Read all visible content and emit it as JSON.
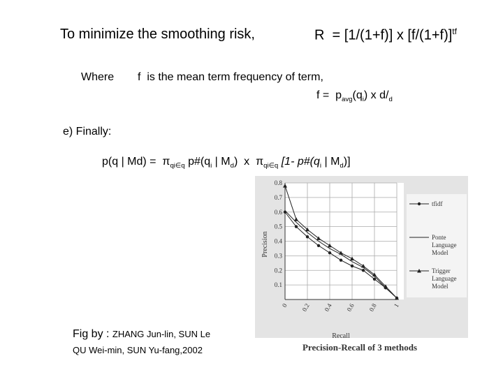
{
  "heading": {
    "text": "To minimize the smoothing risk,",
    "formula": [
      "R  = [1/(1+f)] x [f/(1+f)]",
      "tf"
    ]
  },
  "where": {
    "label": "Where",
    "definition": "f  is the mean term frequency of term,",
    "formula": [
      "f =  p",
      "avg",
      "(q",
      "i",
      ") x d/",
      "d"
    ]
  },
  "finally": {
    "label": "e) Finally:",
    "formula": [
      "p(q | Md) =  π",
      "qi∈q",
      " p#(q",
      "i",
      " | M",
      "d",
      ")  x  π",
      "qi∈q",
      " [1- p#(q",
      "i",
      " | M",
      "d",
      ")]"
    ]
  },
  "credit": {
    "prefix": "Fig by : ",
    "line1": "ZHANG Jun-lin, SUN Le",
    "line2": "QU Wei-min, SUN Yu-fang,2002"
  },
  "chart_data": {
    "type": "line",
    "caption": "Precision-Recall of 3 methods",
    "xlabel": "Recall",
    "ylabel": "Precision",
    "x": [
      0,
      0.1,
      0.2,
      0.3,
      0.4,
      0.5,
      0.6,
      0.7,
      0.8,
      0.9,
      1
    ],
    "series": [
      {
        "name": "tfidf",
        "color": "#222222",
        "marker": "circle",
        "values": [
          0.6,
          0.5,
          0.43,
          0.37,
          0.32,
          0.27,
          0.23,
          0.2,
          0.14,
          0.08,
          0.01
        ]
      },
      {
        "name": "Ponte Language Model",
        "color": "#222222",
        "marker": "none",
        "values": [
          0.61,
          0.53,
          0.46,
          0.4,
          0.35,
          0.31,
          0.26,
          0.22,
          0.16,
          0.08,
          0.01
        ]
      },
      {
        "name": "Trigger Language Model",
        "color": "#222222",
        "marker": "triangle",
        "values": [
          0.78,
          0.55,
          0.48,
          0.42,
          0.37,
          0.32,
          0.28,
          0.23,
          0.17,
          0.09,
          0.01
        ]
      }
    ],
    "xlim": [
      0,
      1
    ],
    "xticks": [
      0,
      0.2,
      0.4,
      0.6,
      0.8,
      1
    ],
    "ylim": [
      0,
      0.8
    ],
    "yticks": [
      0.1,
      0.2,
      0.3,
      0.4,
      0.5,
      0.6,
      0.7,
      0.8
    ],
    "grid": true
  }
}
